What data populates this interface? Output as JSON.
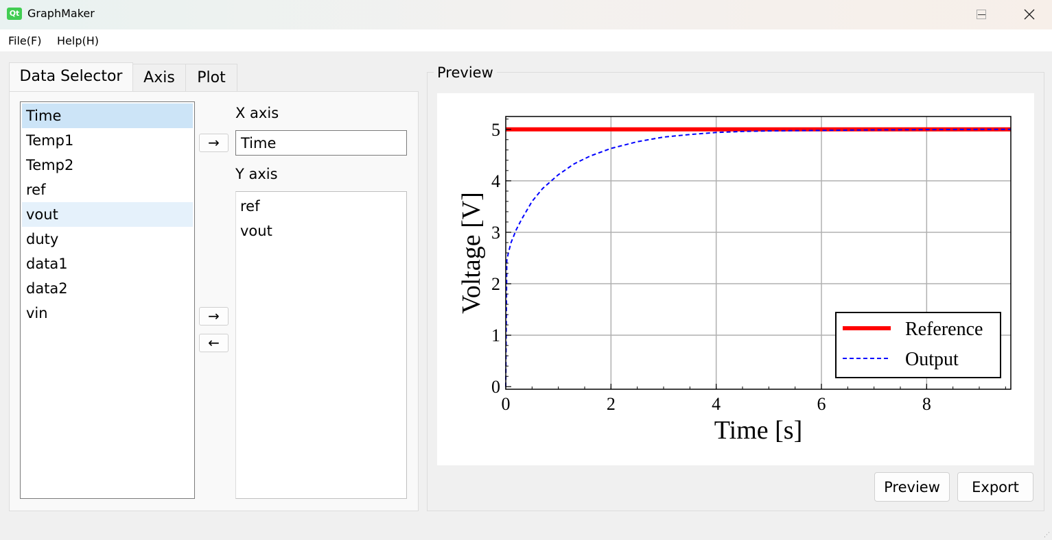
{
  "window": {
    "title": "GraphMaker",
    "icon_label": "Qt"
  },
  "menubar": {
    "file": "File(F)",
    "help": "Help(H)"
  },
  "tabs": [
    {
      "label": "Data Selector",
      "active": true
    },
    {
      "label": "Axis",
      "active": false
    },
    {
      "label": "Plot",
      "active": false
    }
  ],
  "data_selector": {
    "columns": [
      "Time",
      "Temp1",
      "Temp2",
      "ref",
      "vout",
      "duty",
      "data1",
      "data2",
      "vin"
    ],
    "selected": "Time",
    "highlighted": "vout",
    "x_axis_label": "X axis",
    "x_axis_value": "Time",
    "y_axis_label": "Y axis",
    "y_axis_items": [
      "ref",
      "vout"
    ],
    "add_x_button": "→",
    "add_y_button": "→",
    "remove_y_button": "←"
  },
  "preview": {
    "group_title": "Preview",
    "preview_button": "Preview",
    "export_button": "Export"
  },
  "chart_data": {
    "type": "line",
    "xlabel": "Time [s]",
    "ylabel": "Voltage [V]",
    "xlim": [
      0,
      9.6
    ],
    "ylim": [
      -0.05,
      5.25
    ],
    "xticks": [
      "0",
      "2",
      "4",
      "6",
      "8"
    ],
    "yticks": [
      "0",
      "1",
      "2",
      "3",
      "4",
      "5"
    ],
    "grid": true,
    "legend_position": "bottom-right",
    "series": [
      {
        "name": "Reference",
        "color": "#ff0000",
        "style": "solid",
        "x": [
          0,
          9.6
        ],
        "y": [
          5,
          5
        ]
      },
      {
        "name": "Output",
        "color": "#0000ff",
        "style": "dashed",
        "x": [
          0,
          0.02,
          0.05,
          0.1,
          0.2,
          0.3,
          0.5,
          0.7,
          1.0,
          1.3,
          1.6,
          2.0,
          2.5,
          3.0,
          3.5,
          4.0,
          4.5,
          5.0,
          6.0,
          7.0,
          8.0,
          9.0,
          9.6
        ],
        "y": [
          0,
          2.45,
          2.6,
          2.8,
          3.05,
          3.25,
          3.6,
          3.85,
          4.12,
          4.33,
          4.48,
          4.63,
          4.76,
          4.85,
          4.9,
          4.94,
          4.96,
          4.97,
          4.98,
          4.99,
          4.995,
          5.0,
          5.0
        ]
      }
    ]
  }
}
